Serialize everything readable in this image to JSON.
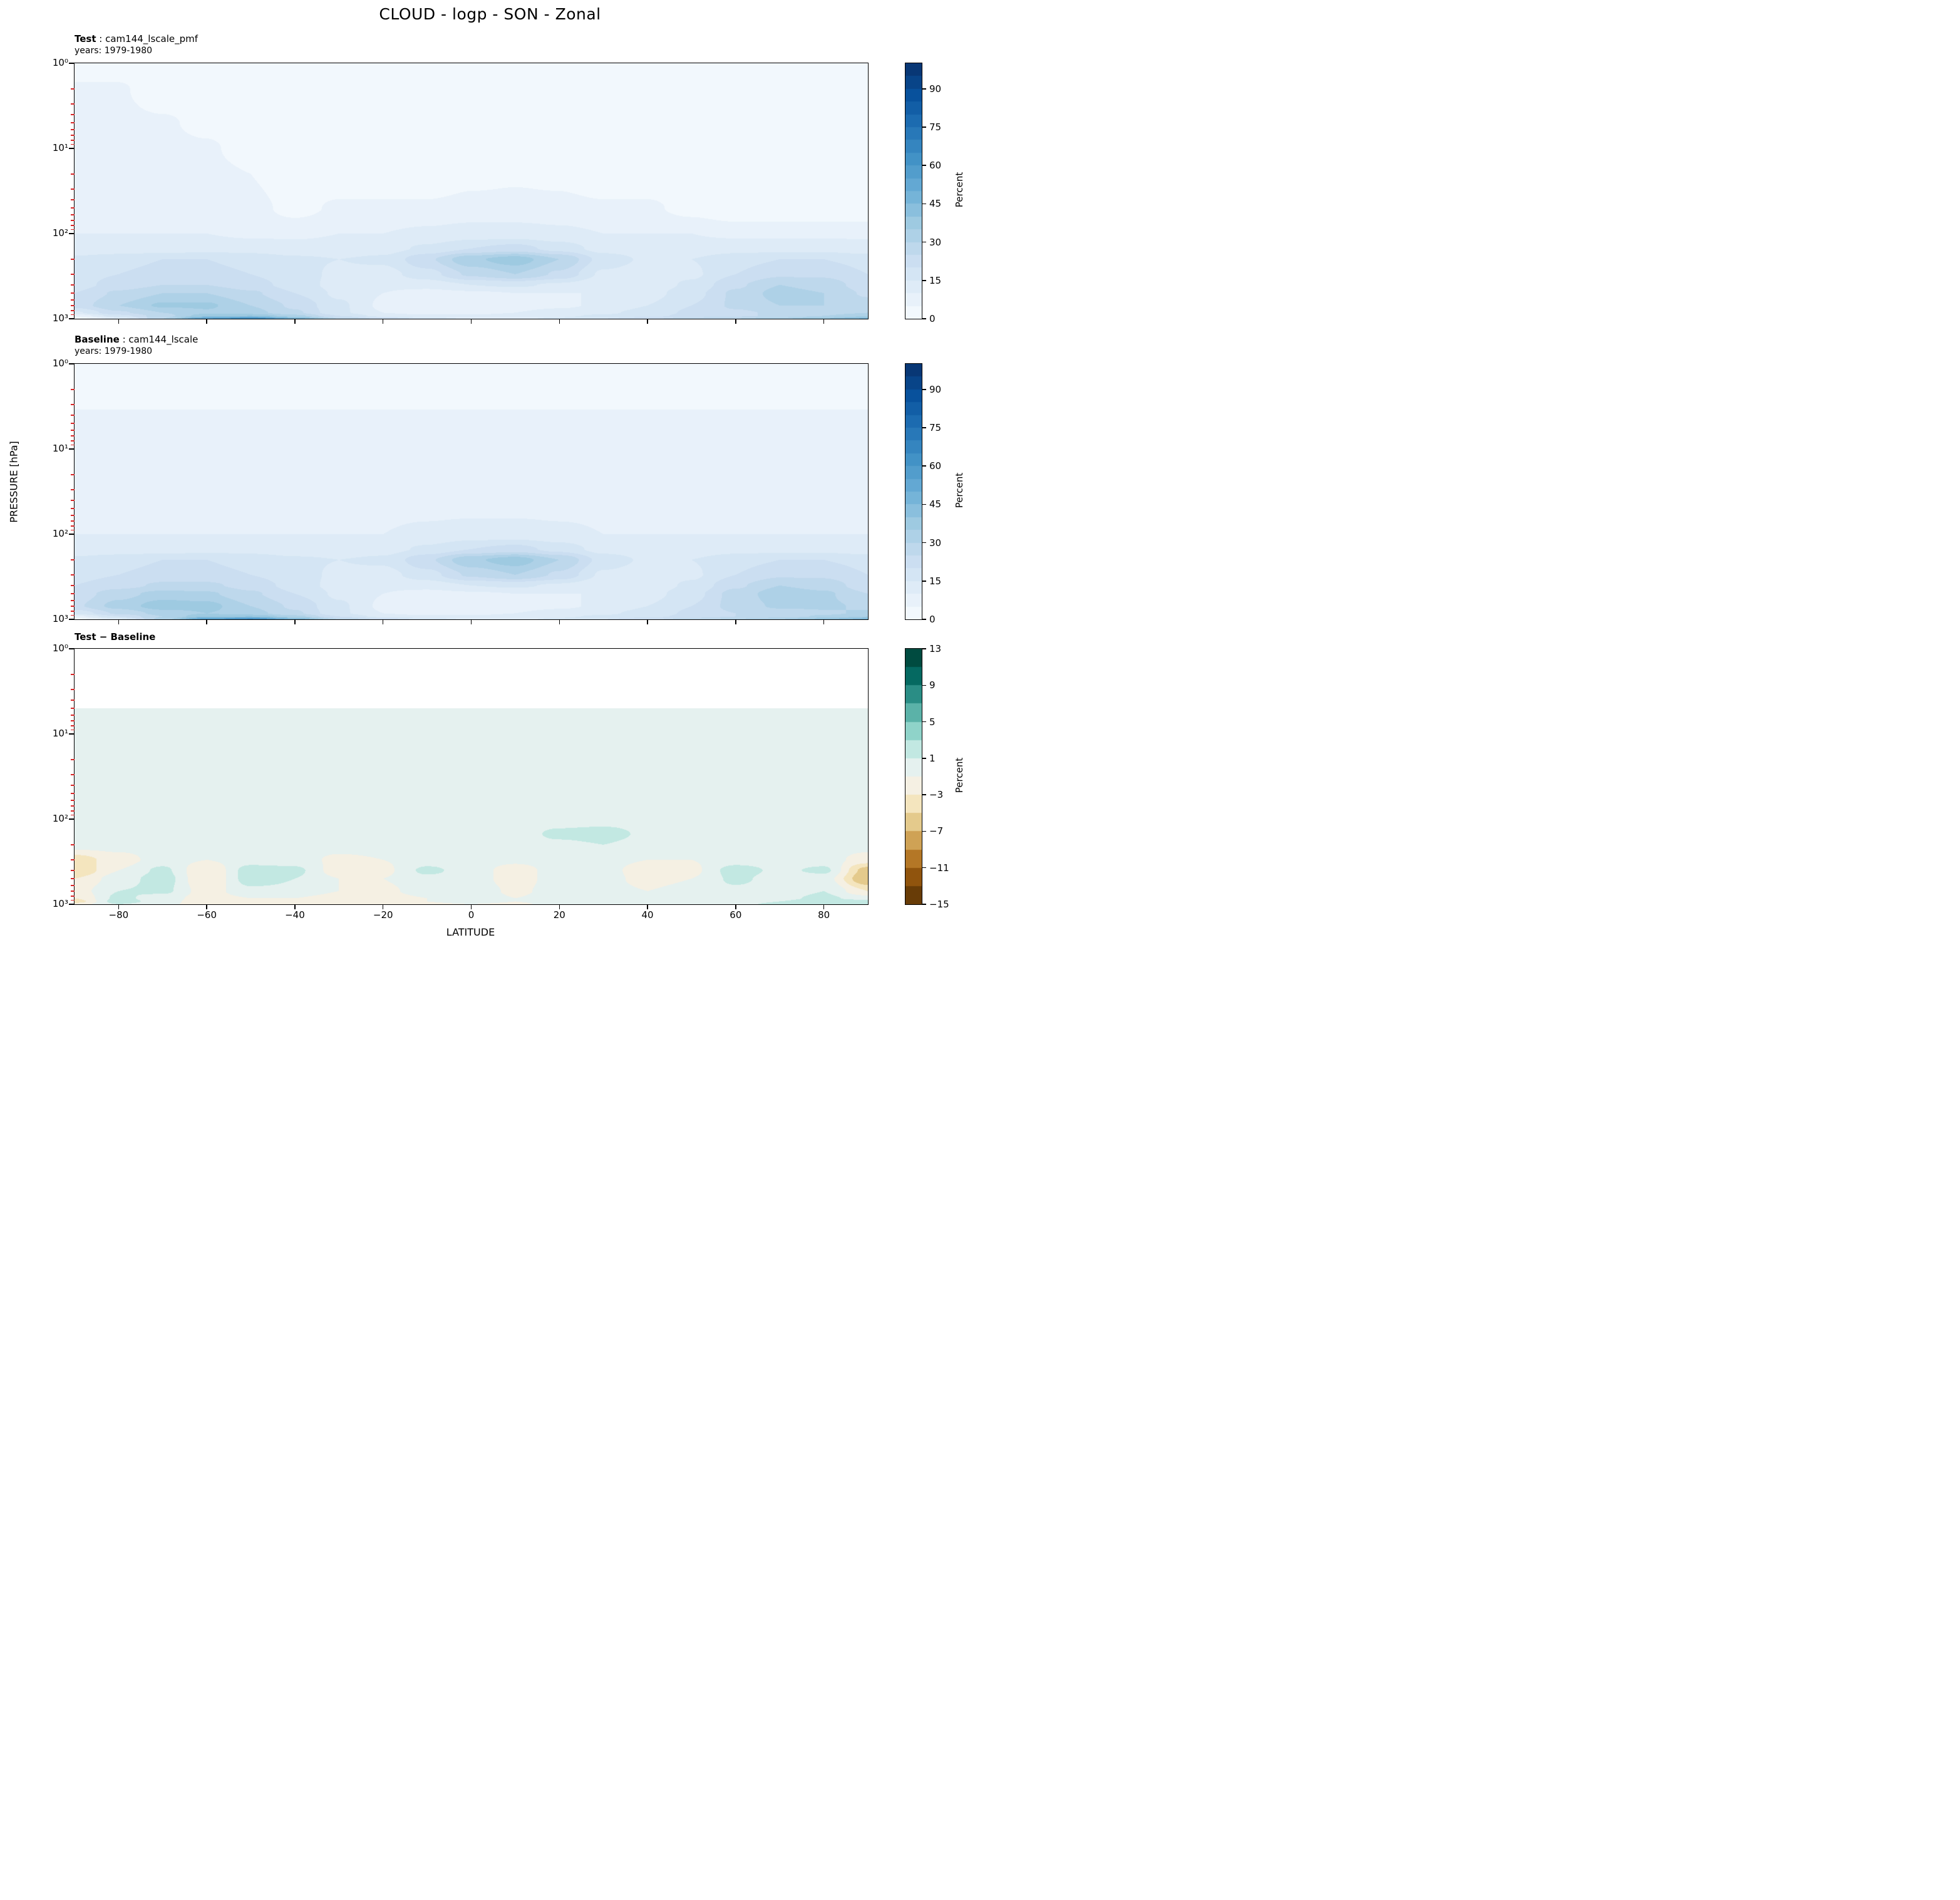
{
  "title": "CLOUD - logp - SON - Zonal",
  "ylabel": "PRESSURE [hPa]",
  "xlabel": "LATITUDE",
  "colorbar_label": "Percent",
  "panels": [
    {
      "label_bold": "Test",
      "label_rest": " : cam144_lscale_pmf",
      "subtitle": "years: 1979-1980"
    },
    {
      "label_bold": "Baseline",
      "label_rest": " : cam144_lscale",
      "subtitle": "years: 1979-1980"
    },
    {
      "label_bold": "Test − Baseline",
      "label_rest": "",
      "subtitle": ""
    }
  ],
  "axes": {
    "y_major_labels": [
      "10⁰",
      "10¹",
      "10²",
      "10³"
    ],
    "y_major_values_hPa": [
      1,
      10,
      100,
      1000
    ],
    "x_tick_values": [
      -80,
      -60,
      -40,
      -20,
      0,
      20,
      40,
      60,
      80
    ],
    "x_tick_labels": [
      "−80",
      "−60",
      "−40",
      "−20",
      "0",
      "20",
      "40",
      "60",
      "80"
    ],
    "minor_tick_color": "#d62728",
    "x_range": [
      -90,
      90
    ],
    "y_log_range": [
      0,
      3
    ]
  },
  "chart_data": [
    {
      "type": "heatmap",
      "style": "filled_contour",
      "name": "Test: cam144_lscale_pmf, years 1979-1980",
      "units": "Percent",
      "y_scale": "log",
      "x": [
        -90,
        -80,
        -70,
        -60,
        -50,
        -40,
        -30,
        -20,
        -10,
        0,
        10,
        20,
        30,
        40,
        50,
        60,
        70,
        80,
        90
      ],
      "y_levels_hPa": [
        1,
        2,
        5,
        10,
        20,
        50,
        100,
        150,
        200,
        300,
        400,
        500,
        700,
        850,
        925,
        1000
      ],
      "values": [
        [
          0,
          0,
          0,
          0,
          0,
          0,
          0,
          0,
          0,
          0,
          0,
          0,
          0,
          0,
          0,
          0,
          0,
          0,
          0
        ],
        [
          6,
          6,
          0,
          0,
          0,
          0,
          0,
          0,
          0,
          0,
          0,
          0,
          0,
          0,
          0,
          0,
          0,
          0,
          0
        ],
        [
          7,
          7,
          6,
          3,
          0,
          0,
          0,
          0,
          0,
          0,
          0,
          0,
          0,
          0,
          0,
          0,
          0,
          0,
          0
        ],
        [
          8,
          8,
          7,
          6,
          2,
          0,
          0,
          0,
          0,
          0,
          0,
          0,
          0,
          0,
          0,
          0,
          0,
          0,
          0
        ],
        [
          8,
          8,
          8,
          7,
          5,
          0,
          0,
          0,
          0,
          3,
          4,
          3,
          0,
          0,
          0,
          0,
          0,
          0,
          0
        ],
        [
          9,
          9,
          8,
          8,
          7,
          3,
          6,
          6,
          6,
          7,
          7,
          7,
          6,
          6,
          3,
          0,
          0,
          0,
          0
        ],
        [
          10,
          10,
          10,
          10,
          9,
          9,
          10,
          10,
          11,
          12,
          12,
          11,
          10,
          10,
          10,
          9,
          9,
          9,
          9
        ],
        [
          12,
          12,
          12,
          13,
          13,
          12,
          12,
          13,
          16,
          20,
          22,
          18,
          13,
          12,
          12,
          13,
          13,
          13,
          12
        ],
        [
          16,
          18,
          20,
          20,
          18,
          16,
          15,
          16,
          24,
          34,
          38,
          30,
          18,
          14,
          15,
          18,
          20,
          20,
          18
        ],
        [
          18,
          20,
          22,
          22,
          20,
          17,
          14,
          13,
          18,
          26,
          30,
          24,
          14,
          12,
          14,
          20,
          24,
          24,
          20
        ],
        [
          18,
          22,
          25,
          25,
          22,
          18,
          13,
          11,
          12,
          15,
          16,
          14,
          11,
          12,
          16,
          24,
          30,
          28,
          22
        ],
        [
          20,
          26,
          30,
          30,
          26,
          20,
          14,
          10,
          8,
          9,
          10,
          10,
          10,
          13,
          18,
          26,
          32,
          30,
          24
        ],
        [
          22,
          30,
          36,
          36,
          30,
          24,
          16,
          9,
          7,
          7,
          8,
          9,
          11,
          15,
          20,
          26,
          30,
          30,
          28
        ],
        [
          14,
          24,
          30,
          34,
          32,
          26,
          16,
          10,
          8,
          8,
          10,
          12,
          14,
          17,
          21,
          24,
          26,
          28,
          30
        ],
        [
          6,
          18,
          28,
          38,
          40,
          32,
          20,
          13,
          11,
          11,
          13,
          14,
          16,
          18,
          22,
          24,
          26,
          30,
          34
        ],
        [
          2,
          12,
          30,
          55,
          65,
          48,
          30,
          24,
          18,
          14,
          14,
          16,
          20,
          24,
          28,
          30,
          34,
          40,
          46
        ]
      ],
      "colormap": [
        "#f7fbff",
        "#deebf7",
        "#c6dbef",
        "#9ecae1",
        "#6baed6",
        "#4292c6",
        "#2171b5",
        "#08519c",
        "#08306b"
      ],
      "levels": [
        0,
        5,
        10,
        15,
        20,
        25,
        30,
        35,
        40,
        45,
        50,
        55,
        60,
        65,
        70,
        75,
        80,
        85,
        90,
        95,
        100
      ],
      "vmin": 0,
      "vmax": 100,
      "colorbar_ticks": {
        "values": [
          90,
          75,
          60,
          45,
          30,
          15,
          0
        ],
        "labels": [
          "90",
          "75",
          "60",
          "45",
          "30",
          "15",
          "0"
        ]
      }
    },
    {
      "type": "heatmap",
      "style": "filled_contour",
      "name": "Baseline: cam144_lscale, years 1979-1980",
      "units": "Percent",
      "y_scale": "log",
      "x": [
        -90,
        -80,
        -70,
        -60,
        -50,
        -40,
        -30,
        -20,
        -10,
        0,
        10,
        20,
        30,
        40,
        50,
        60,
        70,
        80,
        90
      ],
      "y_levels_hPa": [
        1,
        2,
        5,
        10,
        20,
        50,
        100,
        150,
        200,
        300,
        400,
        500,
        700,
        850,
        925,
        1000
      ],
      "values": [
        [
          0,
          0,
          0,
          0,
          0,
          0,
          0,
          0,
          0,
          0,
          0,
          0,
          0,
          0,
          0,
          0,
          0,
          0,
          0
        ],
        [
          0,
          0,
          0,
          0,
          0,
          0,
          0,
          0,
          0,
          0,
          0,
          0,
          0,
          0,
          0,
          0,
          0,
          0,
          0
        ],
        [
          8,
          8,
          8,
          8,
          8,
          8,
          8,
          8,
          8,
          8,
          8,
          8,
          8,
          8,
          8,
          8,
          8,
          8,
          8
        ],
        [
          8,
          8,
          8,
          8,
          8,
          8,
          8,
          8,
          8,
          8,
          8,
          8,
          8,
          8,
          8,
          8,
          8,
          8,
          8
        ],
        [
          8,
          8,
          8,
          8,
          8,
          8,
          8,
          8,
          8,
          8,
          8,
          8,
          8,
          8,
          8,
          8,
          8,
          8,
          8
        ],
        [
          9,
          9,
          9,
          9,
          9,
          9,
          9,
          9,
          9,
          9,
          9,
          9,
          9,
          9,
          9,
          9,
          9,
          9,
          9
        ],
        [
          10,
          10,
          10,
          10,
          10,
          10,
          10,
          10,
          11,
          12,
          12,
          11,
          10,
          10,
          10,
          10,
          10,
          10,
          10
        ],
        [
          12,
          12,
          12,
          13,
          13,
          12,
          12,
          13,
          16,
          20,
          22,
          18,
          13,
          12,
          12,
          13,
          13,
          13,
          12
        ],
        [
          16,
          18,
          20,
          20,
          18,
          16,
          15,
          16,
          24,
          34,
          38,
          30,
          18,
          14,
          15,
          18,
          20,
          20,
          18
        ],
        [
          18,
          20,
          22,
          22,
          20,
          17,
          14,
          13,
          18,
          26,
          30,
          24,
          14,
          12,
          14,
          20,
          24,
          24,
          20
        ],
        [
          20,
          23,
          26,
          26,
          23,
          18,
          13,
          11,
          12,
          15,
          16,
          14,
          11,
          12,
          16,
          24,
          30,
          28,
          22
        ],
        [
          22,
          28,
          32,
          31,
          26,
          20,
          14,
          10,
          8,
          9,
          10,
          10,
          10,
          13,
          18,
          27,
          33,
          31,
          25
        ],
        [
          24,
          32,
          38,
          37,
          30,
          24,
          16,
          9,
          7,
          7,
          8,
          9,
          11,
          15,
          20,
          27,
          31,
          31,
          29
        ],
        [
          16,
          26,
          32,
          35,
          32,
          26,
          16,
          10,
          8,
          8,
          10,
          12,
          14,
          17,
          21,
          25,
          27,
          29,
          31
        ],
        [
          8,
          20,
          30,
          39,
          40,
          32,
          20,
          13,
          11,
          11,
          13,
          14,
          16,
          18,
          22,
          25,
          27,
          31,
          35
        ],
        [
          3,
          13,
          32,
          57,
          66,
          48,
          30,
          24,
          18,
          14,
          14,
          16,
          20,
          24,
          28,
          31,
          35,
          41,
          47
        ]
      ],
      "colormap": [
        "#f7fbff",
        "#deebf7",
        "#c6dbef",
        "#9ecae1",
        "#6baed6",
        "#4292c6",
        "#2171b5",
        "#08519c",
        "#08306b"
      ],
      "levels": [
        0,
        5,
        10,
        15,
        20,
        25,
        30,
        35,
        40,
        45,
        50,
        55,
        60,
        65,
        70,
        75,
        80,
        85,
        90,
        95,
        100
      ],
      "vmin": 0,
      "vmax": 100,
      "colorbar_ticks": {
        "values": [
          90,
          75,
          60,
          45,
          30,
          15,
          0
        ],
        "labels": [
          "90",
          "75",
          "60",
          "45",
          "30",
          "15",
          "0"
        ]
      }
    },
    {
      "type": "heatmap",
      "style": "filled_contour",
      "name": "Test − Baseline",
      "units": "Percent",
      "y_scale": "log",
      "x": [
        -90,
        -80,
        -70,
        -60,
        -50,
        -40,
        -30,
        -20,
        -10,
        0,
        10,
        20,
        30,
        40,
        50,
        60,
        70,
        80,
        90
      ],
      "y_levels_hPa": [
        1,
        2,
        5,
        10,
        20,
        50,
        100,
        150,
        200,
        300,
        400,
        500,
        700,
        850,
        925,
        1000
      ],
      "values": [
        [
          null,
          null,
          null,
          null,
          null,
          null,
          null,
          null,
          null,
          null,
          null,
          null,
          null,
          null,
          null,
          null,
          null,
          null,
          null
        ],
        [
          null,
          null,
          null,
          null,
          null,
          null,
          null,
          null,
          null,
          null,
          null,
          null,
          null,
          null,
          null,
          null,
          null,
          null,
          null
        ],
        [
          0,
          0,
          0,
          0,
          0,
          0,
          0,
          0,
          0,
          0,
          0,
          0,
          0,
          0,
          0,
          0,
          0,
          0,
          0
        ],
        [
          0,
          0,
          0,
          0,
          0,
          0,
          0,
          0,
          0,
          0,
          0,
          0,
          0,
          0,
          0,
          0,
          0,
          0,
          0
        ],
        [
          0,
          0,
          0,
          0,
          0,
          0,
          0,
          0,
          0,
          0,
          0,
          0,
          0,
          0,
          0,
          0,
          0,
          0,
          0
        ],
        [
          0,
          0,
          0,
          0,
          0,
          0,
          0,
          0,
          0,
          0,
          0,
          0,
          0,
          0,
          0,
          0,
          0,
          0,
          0
        ],
        [
          0,
          0,
          0,
          0,
          0,
          0,
          0,
          0,
          0,
          0,
          0,
          0,
          0,
          0,
          0,
          0,
          0,
          0,
          0
        ],
        [
          0,
          0,
          0,
          0,
          0,
          0,
          0,
          0,
          0,
          0,
          0,
          1.5,
          2,
          0.5,
          0,
          0,
          0,
          0,
          0
        ],
        [
          0,
          0,
          0,
          0,
          0,
          0,
          0,
          0,
          0,
          0,
          0,
          0.5,
          1,
          0,
          0,
          0,
          0,
          0,
          0
        ],
        [
          -4,
          -2,
          0,
          -1,
          0,
          0,
          -1.5,
          -1,
          0,
          0,
          -0.5,
          0,
          0,
          -1,
          -1,
          0,
          0,
          0,
          -2
        ],
        [
          -5,
          -1,
          1.5,
          -3,
          2,
          1.5,
          -2,
          -1.5,
          1.5,
          0,
          -2,
          0,
          0,
          -2.5,
          -1.5,
          2,
          0.5,
          1.5,
          -6
        ],
        [
          -3,
          0,
          2,
          -3,
          2,
          1,
          -1,
          -1,
          0.5,
          0,
          -2,
          0,
          0,
          -2,
          -1,
          1.5,
          0,
          0,
          -7
        ],
        [
          -2,
          1,
          1.5,
          -2,
          0.5,
          0.5,
          -1,
          -1.5,
          0,
          0.5,
          -1.5,
          0,
          0,
          -1,
          0,
          0.5,
          0,
          1,
          -3
        ],
        [
          -3,
          1.5,
          0,
          -2,
          -1,
          -1,
          -2,
          -2,
          -1,
          0.5,
          -1,
          0,
          0,
          -0.5,
          0,
          0,
          0.5,
          1.5,
          0
        ],
        [
          -4,
          2,
          0,
          -2.5,
          -2,
          -1.5,
          -2.5,
          -2,
          -1,
          0,
          -1,
          0,
          0,
          0,
          0,
          0,
          1,
          2,
          2
        ],
        [
          -2,
          1,
          0,
          -3,
          -2.5,
          -2,
          -3,
          -2.5,
          -1.5,
          -1,
          -1.5,
          0,
          0,
          0,
          0,
          0.5,
          1.5,
          2.5,
          3
        ]
      ],
      "colormap": [
        "#543005",
        "#8c510a",
        "#bf812d",
        "#dfc27d",
        "#f6e8c3",
        "#f5f5f5",
        "#c7eae5",
        "#80cdc1",
        "#35978f",
        "#01665e",
        "#003c30"
      ],
      "levels": [
        -15,
        -13,
        -11,
        -9,
        -7,
        -5,
        -3,
        -1,
        1,
        3,
        5,
        7,
        9,
        11,
        13
      ],
      "vmin": -15,
      "vmax": 13,
      "colorbar_ticks": {
        "values": [
          13,
          9,
          5,
          1,
          -3,
          -7,
          -11,
          -15
        ],
        "labels": [
          "13",
          "9",
          "5",
          "1",
          "−3",
          "−7",
          "−11",
          "−15"
        ]
      }
    }
  ]
}
